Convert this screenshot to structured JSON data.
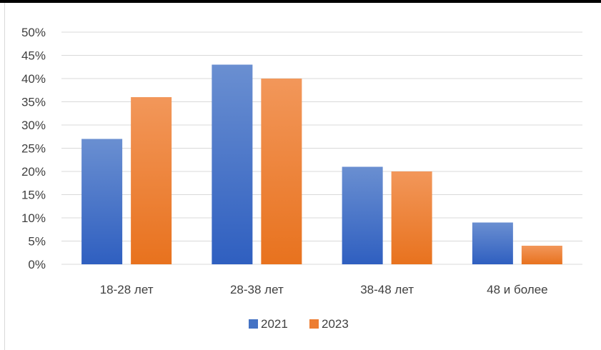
{
  "chart_data": {
    "type": "bar",
    "title": "",
    "xlabel": "",
    "ylabel": "",
    "categories": [
      "18-28 лет",
      "28-38 лет",
      "38-48 лет",
      "48 и более"
    ],
    "series": [
      {
        "name": "2021",
        "values": [
          27,
          43,
          21,
          9
        ],
        "color": "#4472C4"
      },
      {
        "name": "2023",
        "values": [
          36,
          40,
          20,
          4
        ],
        "color": "#ED7D31"
      }
    ],
    "ylim": [
      0,
      50
    ],
    "y_ticks": [
      "0%",
      "5%",
      "10%",
      "15%",
      "20%",
      "25%",
      "30%",
      "35%",
      "40%",
      "45%",
      "50%"
    ],
    "grid": true,
    "legend_position": "bottom"
  }
}
